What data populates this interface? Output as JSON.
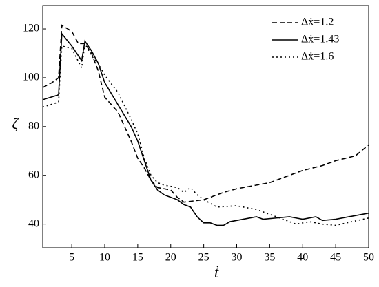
{
  "chart_data": {
    "type": "line",
    "x_label": "ṫ",
    "y_label": "ζ",
    "xlim": [
      0.6,
      50
    ],
    "ylim": [
      30.3,
      129.6
    ],
    "xticks": [
      5,
      10,
      15,
      20,
      25,
      30,
      35,
      40,
      45,
      50
    ],
    "yticks": [
      40,
      60,
      80,
      100,
      120
    ],
    "legend": "upper right",
    "series": [
      {
        "name": "Δẋ=1.2",
        "color": "#000000",
        "dash": "dashed",
        "x": [
          0.6,
          2,
          3,
          3.5,
          5,
          6,
          7,
          8,
          9,
          10,
          12,
          14,
          15,
          16,
          17,
          18,
          20,
          21,
          22,
          25,
          28,
          30,
          35,
          38,
          40,
          43,
          45,
          48,
          50
        ],
        "values": [
          96,
          98,
          100,
          121.5,
          119,
          114,
          114,
          110,
          103,
          92,
          86,
          74,
          67,
          63,
          58,
          55,
          54,
          51,
          49,
          50,
          53,
          54.5,
          57,
          60,
          62,
          64,
          66,
          68,
          72.5
        ]
      },
      {
        "name": "Δẋ=1.43",
        "color": "#000000",
        "dash": "solid",
        "x": [
          0.6,
          3,
          3.5,
          5,
          6.5,
          7,
          8,
          9,
          10,
          12,
          14,
          15,
          16,
          17,
          18,
          19,
          20,
          21,
          22,
          23,
          24,
          25,
          26,
          27,
          28,
          29,
          33,
          34,
          36,
          38,
          39,
          40,
          42,
          43,
          45,
          50
        ],
        "values": [
          91,
          93,
          118,
          113,
          107,
          115,
          111,
          106,
          98,
          89,
          80,
          74,
          66,
          58,
          54,
          52,
          51,
          50,
          48,
          47,
          43,
          40.5,
          40.5,
          39.5,
          39.5,
          41,
          43,
          42,
          42.5,
          43,
          42.5,
          42,
          43,
          41.5,
          42,
          44.5
        ]
      },
      {
        "name": "Δẋ=1.6",
        "color": "#000000",
        "dash": "dotted",
        "x": [
          0.6,
          3,
          3.5,
          5,
          6.5,
          7,
          8,
          9,
          10,
          12,
          14,
          15,
          16,
          17,
          18,
          19,
          21,
          22,
          23,
          24,
          25,
          27,
          30,
          33,
          35,
          37,
          39,
          41,
          43,
          45,
          50
        ],
        "values": [
          88,
          90,
          113,
          112,
          104,
          114,
          109,
          106,
          101,
          94,
          83,
          77,
          67,
          60,
          57,
          56,
          55,
          53,
          55,
          52,
          50,
          47,
          47.5,
          46,
          44,
          42,
          40,
          41,
          40,
          39.5,
          42.5
        ]
      }
    ]
  }
}
